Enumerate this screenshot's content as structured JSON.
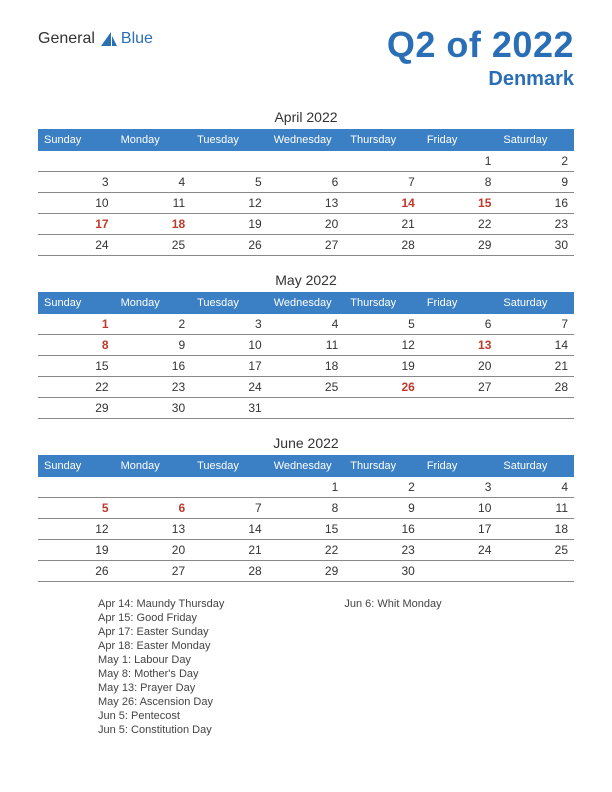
{
  "logo": {
    "general": "General",
    "blue": "Blue"
  },
  "title": "Q2 of 2022",
  "subtitle": "Denmark",
  "colors": {
    "brand": "#2a6fb5",
    "header_bg": "#3b7fc4",
    "holiday": "#c0392b",
    "row_border": "#888888",
    "text": "#333333",
    "bg": "#ffffff"
  },
  "day_headers": [
    "Sunday",
    "Monday",
    "Tuesday",
    "Wednesday",
    "Thursday",
    "Friday",
    "Saturday"
  ],
  "months": [
    {
      "title": "April 2022",
      "weeks": [
        [
          "",
          "",
          "",
          "",
          "",
          "1",
          "2"
        ],
        [
          "3",
          "4",
          "5",
          "6",
          "7",
          "8",
          "9"
        ],
        [
          "10",
          "11",
          "12",
          "13",
          "14",
          "15",
          "16"
        ],
        [
          "17",
          "18",
          "19",
          "20",
          "21",
          "22",
          "23"
        ],
        [
          "24",
          "25",
          "26",
          "27",
          "28",
          "29",
          "30"
        ]
      ],
      "holidays": [
        "14",
        "15",
        "17",
        "18"
      ]
    },
    {
      "title": "May 2022",
      "weeks": [
        [
          "1",
          "2",
          "3",
          "4",
          "5",
          "6",
          "7"
        ],
        [
          "8",
          "9",
          "10",
          "11",
          "12",
          "13",
          "14"
        ],
        [
          "15",
          "16",
          "17",
          "18",
          "19",
          "20",
          "21"
        ],
        [
          "22",
          "23",
          "24",
          "25",
          "26",
          "27",
          "28"
        ],
        [
          "29",
          "30",
          "31",
          "",
          "",
          "",
          ""
        ]
      ],
      "holidays": [
        "1",
        "8",
        "13",
        "26"
      ]
    },
    {
      "title": "June 2022",
      "weeks": [
        [
          "",
          "",
          "",
          "1",
          "2",
          "3",
          "4"
        ],
        [
          "5",
          "6",
          "7",
          "8",
          "9",
          "10",
          "11"
        ],
        [
          "12",
          "13",
          "14",
          "15",
          "16",
          "17",
          "18"
        ],
        [
          "19",
          "20",
          "21",
          "22",
          "23",
          "24",
          "25"
        ],
        [
          "26",
          "27",
          "28",
          "29",
          "30",
          "",
          ""
        ]
      ],
      "holidays": [
        "5",
        "6"
      ]
    }
  ],
  "holiday_list": {
    "col1": [
      "Apr 14: Maundy Thursday",
      "Apr 15: Good Friday",
      "Apr 17: Easter Sunday",
      "Apr 18: Easter Monday",
      "May 1: Labour Day",
      "May 8: Mother's Day",
      "May 13: Prayer Day",
      "May 26: Ascension Day",
      "Jun 5: Pentecost",
      "Jun 5: Constitution Day"
    ],
    "col2": [
      "Jun 6: Whit Monday"
    ]
  }
}
